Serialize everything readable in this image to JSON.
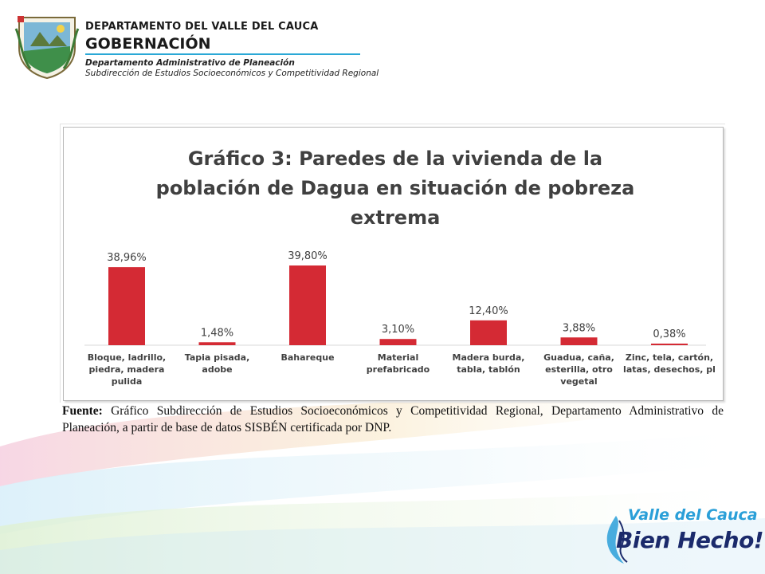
{
  "header": {
    "department": "DEPARTAMENTO DEL VALLE DEL CAUCA",
    "governance": "GOBERNACIÓN",
    "office": "Departamento  Administrativo de Planeación",
    "subdirectorate": "Subdirección de Estudios Socioeconómicos y Competitividad Regional"
  },
  "chart_data": {
    "type": "bar",
    "title": "Gráfico 3: Paredes de la vivienda de la población de Dagua en situación de pobreza extrema",
    "title_lines": [
      "Gráfico 3: Paredes de la vivienda de la",
      "población de Dagua en situación de pobreza",
      "extrema"
    ],
    "categories": [
      "Bloque, ladrillo, piedra, madera pulida",
      "Tapia pisada, adobe",
      "Bahareque",
      "Material prefabricado",
      "Madera burda, tabla, tablón",
      "Guadua, caña, esterilla, otro vegetal",
      "Zinc, tela, cartón, latas, desechos, pl"
    ],
    "category_lines": [
      [
        "Bloque, ladrillo,",
        "piedra, madera",
        "pulida"
      ],
      [
        "Tapia pisada,",
        "adobe"
      ],
      [
        "Bahareque"
      ],
      [
        "Material",
        "prefabricado"
      ],
      [
        "Madera burda,",
        "tabla, tablón"
      ],
      [
        "Guadua, caña,",
        "esterilla, otro",
        "vegetal"
      ],
      [
        "Zinc, tela, cartón,",
        "latas, desechos, pl"
      ]
    ],
    "values": [
      38.96,
      1.48,
      39.8,
      3.1,
      12.4,
      3.88,
      0.38
    ],
    "data_labels": [
      "38,96%",
      "1,48%",
      "39,80%",
      "3,10%",
      "12,40%",
      "3,88%",
      "0,38%"
    ],
    "ylim": [
      0,
      45
    ],
    "bar_color": "#d42a34",
    "grid": false,
    "legend": "none"
  },
  "source": {
    "label": "Fuente:",
    "text": " Gráfico Subdirección de Estudios Socioeconómicos y Competitividad Regional, Departamento Administrativo de Planeación, a partir de base de datos SISBÉN certificada por DNP."
  },
  "logo": {
    "top": "Valle del Cauca",
    "bottom": "Bien Hecho!"
  },
  "colors": {
    "accent": "#2aa8d6",
    "bar": "#d42a34",
    "logo_blue": "#1b2a6b"
  }
}
